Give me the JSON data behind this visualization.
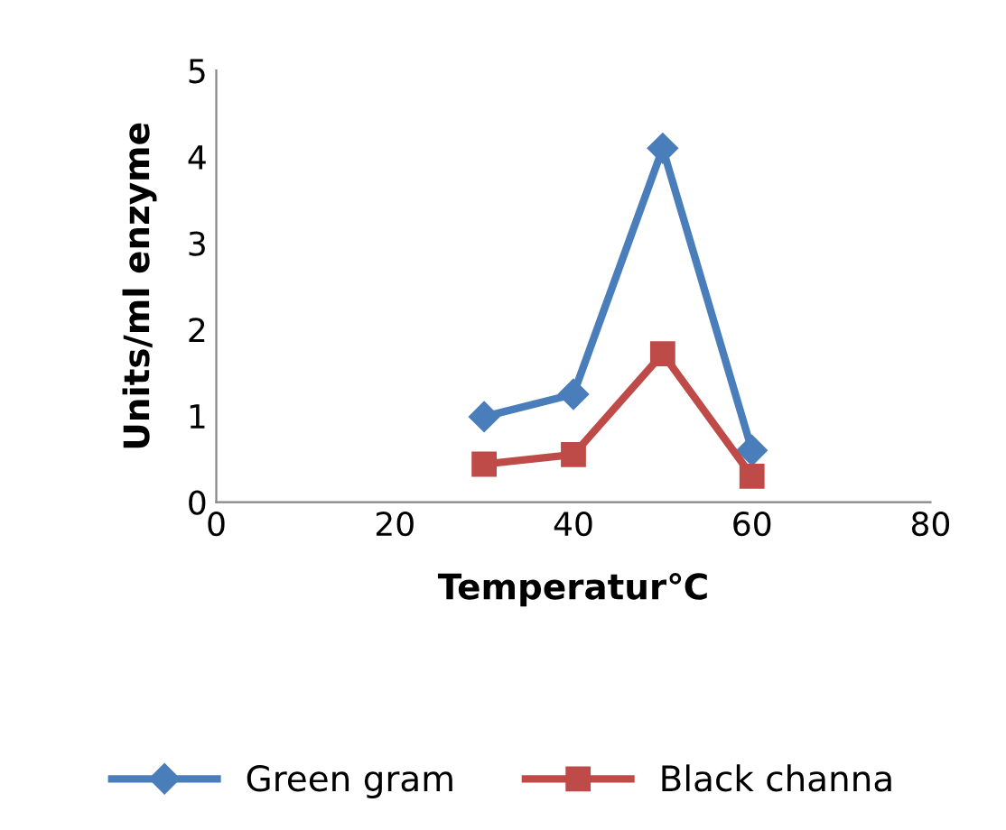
{
  "chart_data": {
    "type": "line",
    "xlabel": "Temperatur℃",
    "ylabel": "Units/ml enzyme",
    "x": [
      30,
      40,
      50,
      60
    ],
    "series": [
      {
        "name": "Green gram",
        "color": "#4a7ebb",
        "values": [
          0.99,
          1.25,
          4.1,
          0.6
        ],
        "marker": "diamond"
      },
      {
        "name": "Black channa",
        "color": "#be4b48",
        "values": [
          0.44,
          0.55,
          1.72,
          0.3
        ],
        "marker": "square"
      }
    ],
    "xlim": [
      0,
      80
    ],
    "xticks": [
      0,
      20,
      40,
      60,
      80
    ],
    "ylim": [
      0,
      5
    ],
    "yticks": [
      0,
      1,
      2,
      3,
      4,
      5
    ],
    "grid": false,
    "legend": "bottom",
    "line_style": "solid"
  }
}
